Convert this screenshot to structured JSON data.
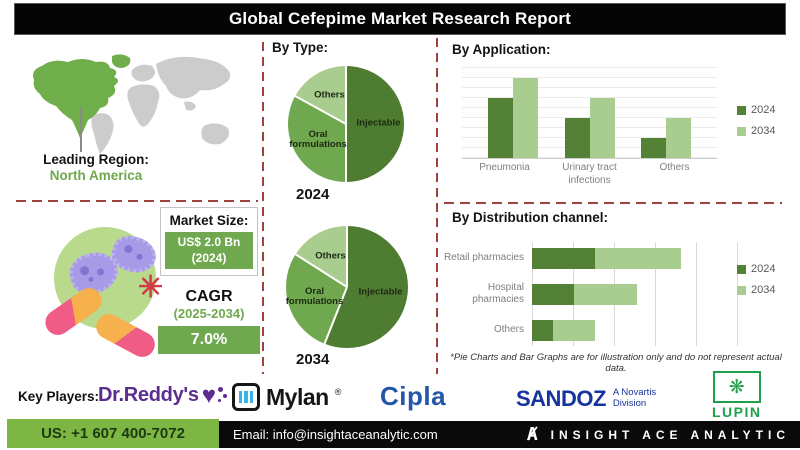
{
  "title": "Global Cefepime Market Research Report",
  "leading_region": {
    "label": "Leading Region:",
    "value": "North America"
  },
  "market_size": {
    "label": "Market Size:",
    "value": "US$ 2.0 Bn",
    "year": "(2024)"
  },
  "cagr": {
    "label": "CAGR",
    "period": "(2025-2034)",
    "value": "7.0%"
  },
  "sections": {
    "by_type": "By Type:",
    "by_application": "By Application:",
    "by_distribution": "By Distribution channel:"
  },
  "footnote": "*Pie Charts and Bar Graphs are for illustration only and do not represent actual data.",
  "key_players": {
    "label": "Key Players:",
    "dr_reddys": "Dr.Reddy's",
    "mylan": "Mylan",
    "mylan_reg": "®",
    "cipla": "Cipla",
    "sandoz": "SANDOZ",
    "sandoz_sub1": "A Novartis",
    "sandoz_sub2": "Division",
    "lupin": "LUPIN"
  },
  "footer": {
    "phone": "US: +1 607 400-7072",
    "email": "Email: info@insightaceanalytic.com",
    "brand": "INSIGHT ACE ANALYTIC"
  },
  "colors": {
    "pie_dark": "#4e7c31",
    "pie_mid": "#6fa84e",
    "pie_light": "#a9cc8f",
    "series_dark": "#538135",
    "series_light": "#a9cd90",
    "accent_dashed": "#9e423b",
    "brand_green": "#6fa84e",
    "footer_green": "#7db643",
    "na_green": "#6fae4a",
    "map_gray": "#cccccc"
  },
  "chart_data": [
    {
      "type": "pie",
      "title": "By Type:",
      "year": "2024",
      "labels": [
        "Injectable",
        "Oral formulations",
        "Others"
      ],
      "values": [
        50,
        33,
        17
      ]
    },
    {
      "type": "pie",
      "title": "By Type:",
      "year": "2034",
      "labels": [
        "Injectable",
        "Oral formulations",
        "Others"
      ],
      "values": [
        56,
        28,
        16
      ]
    },
    {
      "type": "bar",
      "title": "By Application:",
      "categories": [
        "Pneumonia",
        "Urinary tract infections",
        "Others"
      ],
      "series": [
        {
          "name": "2024",
          "values": [
            65,
            44,
            22
          ]
        },
        {
          "name": "2034",
          "values": [
            87,
            65,
            44
          ]
        }
      ],
      "ylim": [
        0,
        100
      ],
      "grid": true,
      "legend_position": "right"
    },
    {
      "type": "bar",
      "orientation": "horizontal-stacked",
      "title": "By Distribution channel:",
      "categories": [
        "Retail pharmacies",
        "Hospital pharmacies",
        "Others"
      ],
      "series": [
        {
          "name": "2024",
          "values": [
            30,
            20,
            10
          ]
        },
        {
          "name": "2034",
          "values": [
            41,
            30,
            20
          ]
        }
      ],
      "xlim": [
        0,
        100
      ],
      "grid": true,
      "legend_position": "right"
    }
  ]
}
